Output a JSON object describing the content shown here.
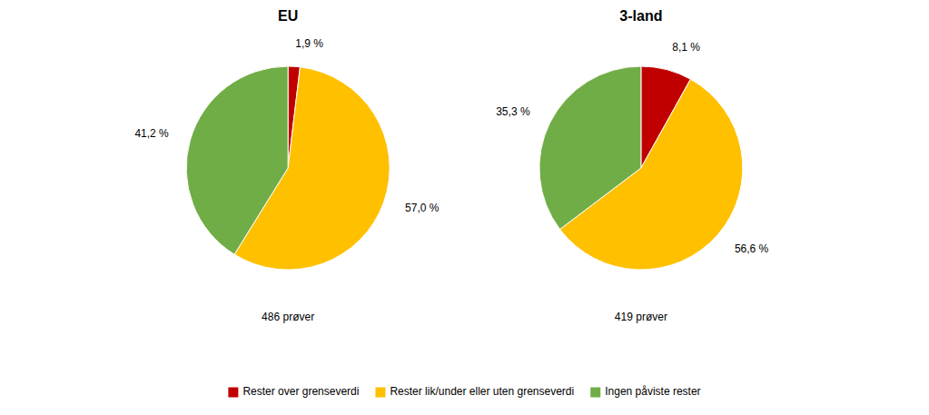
{
  "chart_data": [
    {
      "type": "pie",
      "title": "EU",
      "categories": [
        "Rester over grenseverdi",
        "Rester lik/under eller uten grenseverdi",
        "Ingen påviste rester"
      ],
      "values": [
        1.9,
        57.0,
        41.2
      ],
      "value_labels": [
        "1,9 %",
        "57,0 %",
        "41,2 %"
      ],
      "colors": [
        "#c00000",
        "#ffc000",
        "#70ad47"
      ],
      "data_labels": true,
      "annotations": [
        "486 prøver"
      ],
      "legend": "bottom"
    },
    {
      "type": "pie",
      "title": "3-land",
      "categories": [
        "Rester over grenseverdi",
        "Rester lik/under eller uten grenseverdi",
        "Ingen påviste rester"
      ],
      "values": [
        8.1,
        56.6,
        35.3
      ],
      "value_labels": [
        "8,1 %",
        "56,6 %",
        "35,3 %"
      ],
      "colors": [
        "#c00000",
        "#ffc000",
        "#70ad47"
      ],
      "data_labels": true,
      "annotations": [
        "419 prøver"
      ]
    }
  ]
}
